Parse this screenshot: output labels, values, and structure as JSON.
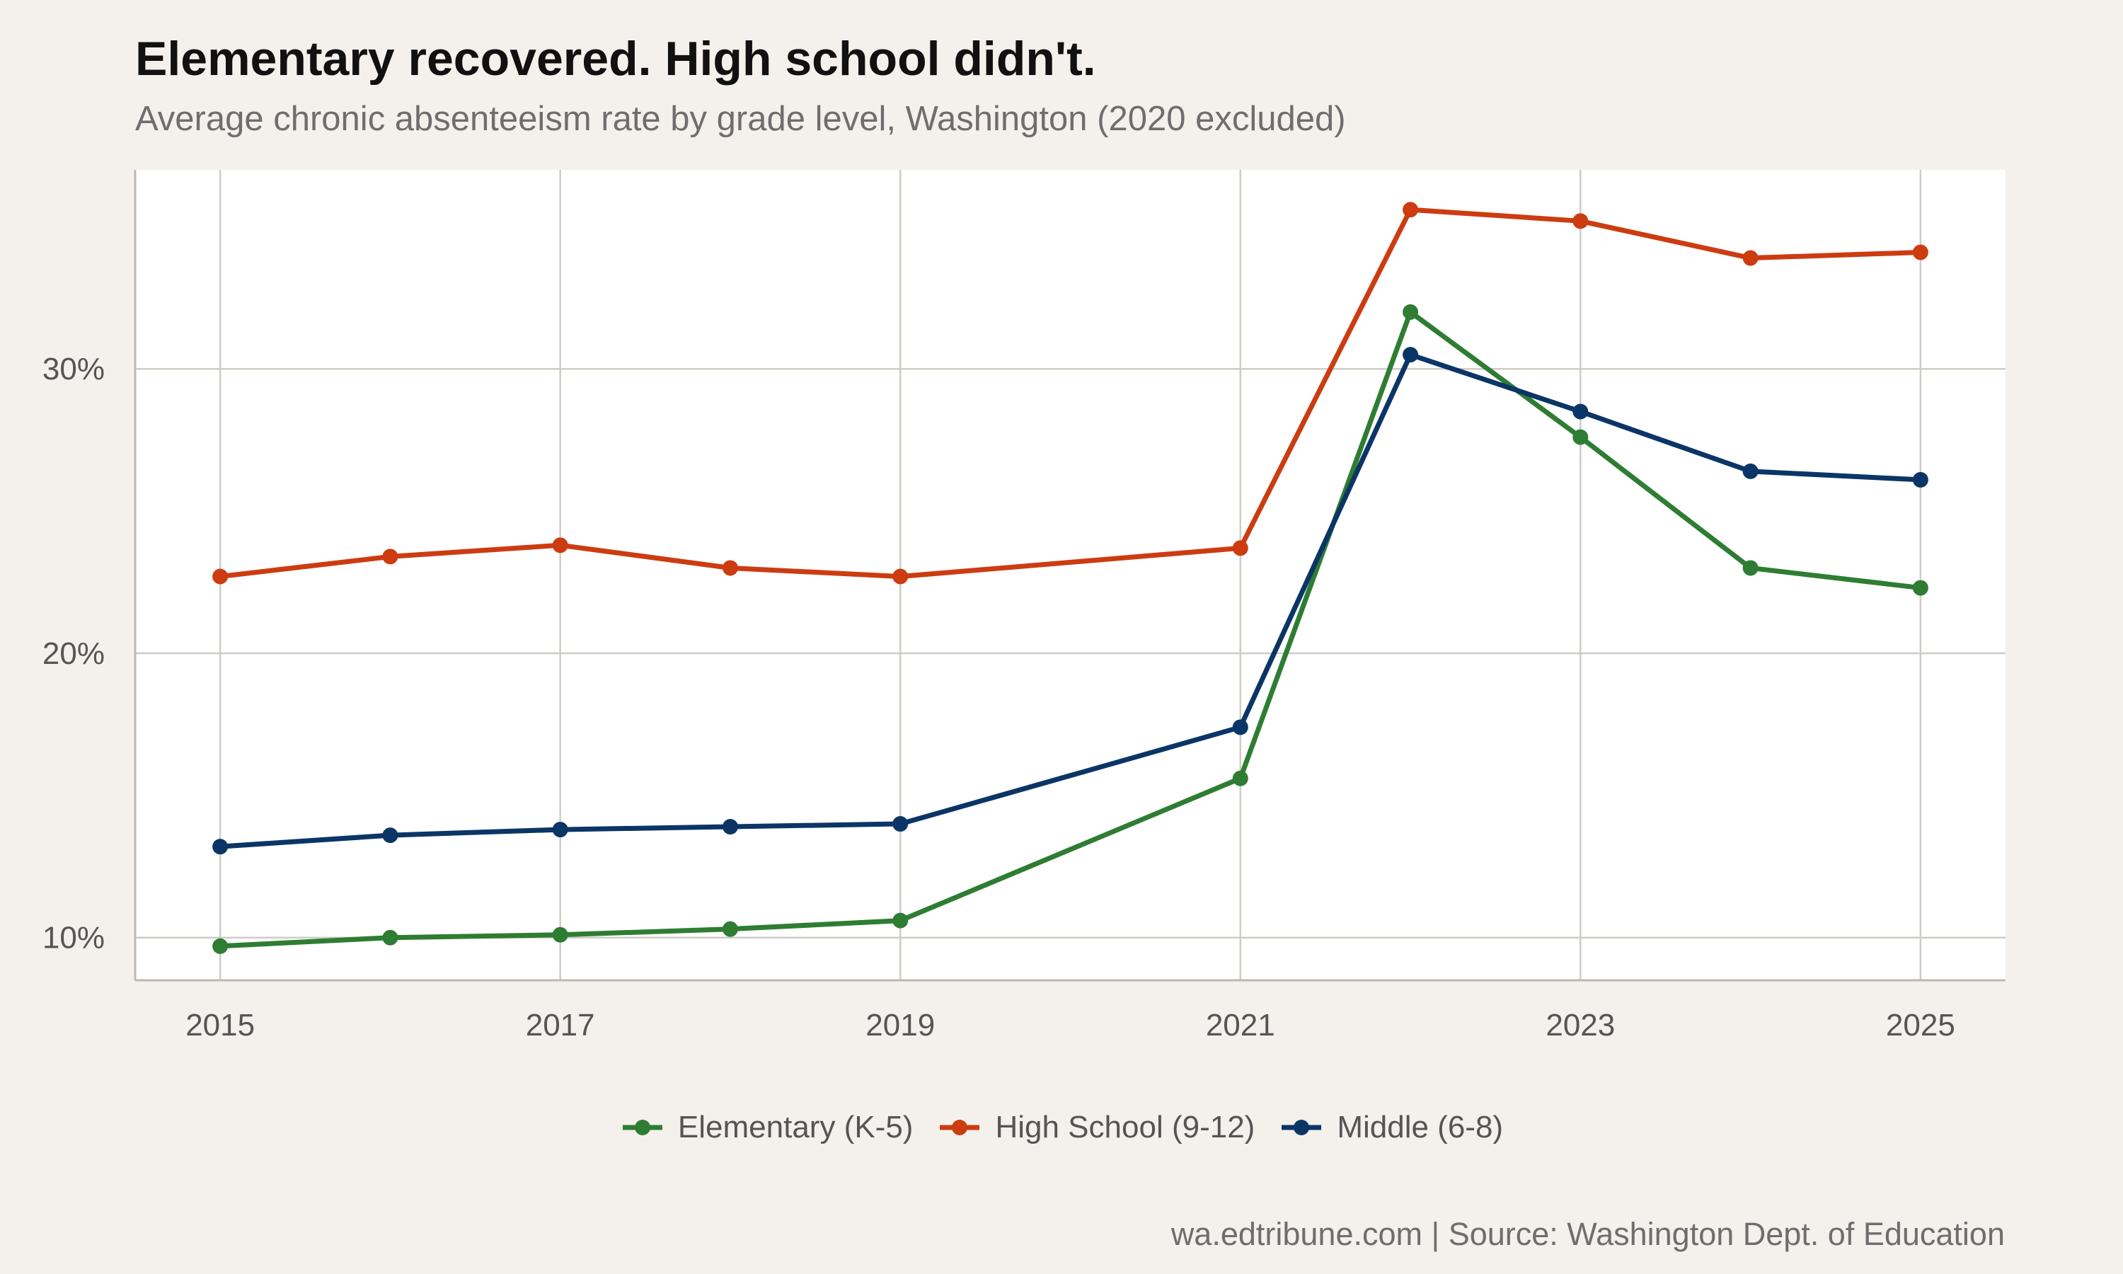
{
  "title": "Elementary recovered. High school didn't.",
  "subtitle": "Average chronic absenteeism rate by grade level, Washington (2020 excluded)",
  "caption": "wa.edtribune.com | Source: Washington Dept. of Education",
  "chart_data": {
    "type": "line",
    "title": "Elementary recovered. High school didn't.",
    "subtitle": "Average chronic absenteeism rate by grade level, Washington (2020 excluded)",
    "xlabel": "",
    "ylabel": "",
    "x": [
      2015,
      2016,
      2017,
      2018,
      2019,
      2021,
      2022,
      2023,
      2024,
      2025
    ],
    "x_ticks": [
      "2015",
      "2017",
      "2019",
      "2021",
      "2023",
      "2025"
    ],
    "y_ticks": [
      {
        "value": 10,
        "label": "10%"
      },
      {
        "value": 20,
        "label": "20%"
      },
      {
        "value": 30,
        "label": "30%"
      }
    ],
    "xlim": [
      2014.5,
      2025.5
    ],
    "ylim": [
      8.5,
      37.0
    ],
    "grid": true,
    "legend_position": "bottom",
    "series": [
      {
        "name": "Elementary (K-5)",
        "color": "#2e7d32",
        "values": [
          9.7,
          10.0,
          10.1,
          10.3,
          10.6,
          15.6,
          32.0,
          27.6,
          23.0,
          22.3
        ]
      },
      {
        "name": "High School (9-12)",
        "color": "#cc3c10",
        "values": [
          22.7,
          23.4,
          23.8,
          23.0,
          22.7,
          23.7,
          35.6,
          35.2,
          33.9,
          34.1
        ]
      },
      {
        "name": "Middle (6-8)",
        "color": "#0b3566",
        "values": [
          13.2,
          13.6,
          13.8,
          13.9,
          14.0,
          17.4,
          30.5,
          28.5,
          26.4,
          26.1
        ]
      }
    ]
  }
}
